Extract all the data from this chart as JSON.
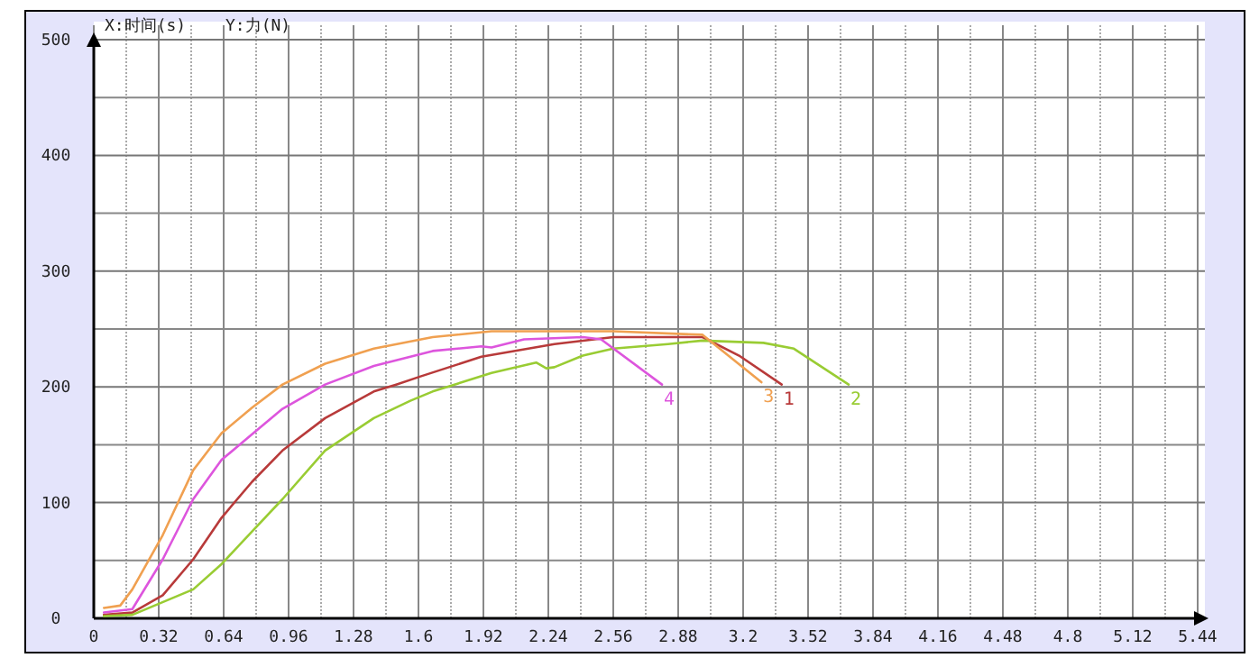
{
  "chart_data": {
    "type": "line",
    "xlabel": "X:时间(s)",
    "ylabel": "Y:力(N)",
    "xlim": [
      0,
      5.44
    ],
    "ylim": [
      0,
      500
    ],
    "xticks": [
      0,
      0.32,
      0.64,
      0.96,
      1.28,
      1.6,
      1.92,
      2.24,
      2.56,
      2.88,
      3.2,
      3.52,
      3.84,
      4.16,
      4.48,
      4.8,
      5.12,
      5.44
    ],
    "yticks": [
      0,
      100,
      200,
      300,
      400,
      500
    ],
    "grid": true,
    "legend": false,
    "marker": "none",
    "line_style": "solid",
    "series": [
      {
        "name": "1",
        "color": "#b83a3a",
        "x": [
          0.05,
          0.19,
          0.34,
          0.49,
          0.63,
          0.78,
          0.93,
          1.14,
          1.38,
          1.49,
          1.61,
          1.91,
          2.27,
          2.56,
          3.0,
          3.18,
          3.39
        ],
        "values": [
          3,
          5,
          20,
          51,
          87,
          118,
          145,
          173,
          196,
          202,
          209,
          226,
          237,
          243,
          243,
          227,
          202
        ]
      },
      {
        "name": "2",
        "color": "#99cc33",
        "x": [
          0.05,
          0.19,
          0.49,
          0.63,
          0.78,
          0.93,
          1.14,
          1.38,
          1.56,
          1.67,
          1.96,
          2.18,
          2.23,
          2.27,
          2.41,
          2.56,
          2.83,
          3.0,
          3.3,
          3.45,
          3.72
        ],
        "values": [
          2,
          3,
          25,
          47,
          75,
          103,
          145,
          173,
          188,
          196,
          212,
          221,
          216,
          217,
          227,
          233,
          237,
          240,
          238,
          233,
          202
        ]
      },
      {
        "name": "3",
        "color": "#f0a050",
        "x": [
          0.05,
          0.13,
          0.19,
          0.34,
          0.49,
          0.63,
          0.78,
          0.93,
          1.14,
          1.38,
          1.67,
          1.96,
          2.56,
          3.0,
          3.29
        ],
        "values": [
          9,
          11,
          25,
          72,
          128,
          160,
          182,
          202,
          220,
          233,
          243,
          248,
          248,
          245,
          204
        ]
      },
      {
        "name": "4",
        "color": "#dd55dd",
        "x": [
          0.05,
          0.19,
          0.34,
          0.49,
          0.63,
          0.78,
          0.93,
          1.14,
          1.38,
          1.67,
          1.91,
          1.96,
          2.12,
          2.41,
          2.5,
          2.8
        ],
        "values": [
          5,
          8,
          51,
          103,
          137,
          159,
          181,
          202,
          218,
          231,
          235,
          234,
          241,
          243,
          241,
          202
        ]
      }
    ]
  }
}
